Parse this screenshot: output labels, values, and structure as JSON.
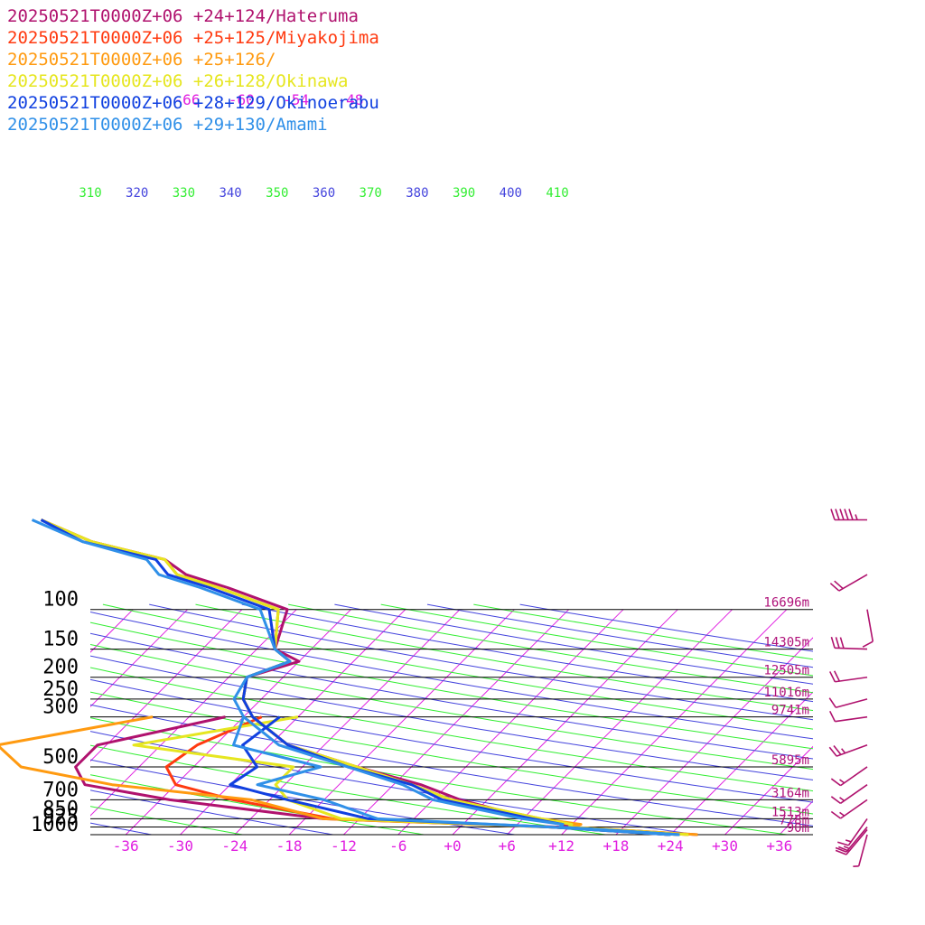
{
  "chart_data": {
    "type": "line",
    "pressure_levels": [
      100,
      150,
      200,
      250,
      300,
      500,
      700,
      850,
      925,
      1000
    ],
    "heights": [
      {
        "p": 100,
        "label": "16696m"
      },
      {
        "p": 150,
        "label": "14305m"
      },
      {
        "p": 200,
        "label": "12505m"
      },
      {
        "p": 250,
        "label": "11016m"
      },
      {
        "p": 300,
        "label": "9741m"
      },
      {
        "p": 500,
        "label": "5895m"
      },
      {
        "p": 700,
        "label": "3164m"
      },
      {
        "p": 850,
        "label": "1513m"
      },
      {
        "p": 925,
        "label": "778m"
      },
      {
        "p": 1000,
        "label": "90m"
      }
    ],
    "temperature_ticks": [
      "-36",
      "-30",
      "-24",
      "-18",
      "-12",
      "-6",
      "+0",
      "+6",
      "+12",
      "+18",
      "+24",
      "+30",
      "+36"
    ],
    "upper_isotherm_labels": [
      "-66",
      "-60",
      "-54",
      "-48"
    ],
    "theta_labels": [
      {
        "value": "310",
        "color": "#33ee33"
      },
      {
        "value": "320",
        "color": "#4444dd"
      },
      {
        "value": "330",
        "color": "#33ee33"
      },
      {
        "value": "340",
        "color": "#4444dd"
      },
      {
        "value": "350",
        "color": "#33ee33"
      },
      {
        "value": "360",
        "color": "#4444dd"
      },
      {
        "value": "370",
        "color": "#33ee33"
      },
      {
        "value": "380",
        "color": "#4444dd"
      },
      {
        "value": "390",
        "color": "#33ee33"
      },
      {
        "value": "400",
        "color": "#4444dd"
      },
      {
        "value": "410",
        "color": "#33ee33"
      }
    ],
    "series": [
      {
        "name": "20250521T0000Z+06 +24+124/Hateruma",
        "color": "#b0126e",
        "temperature": [
          [
            40,
            -80
          ],
          [
            50,
            -72
          ],
          [
            60,
            -62
          ],
          [
            70,
            -58
          ],
          [
            80,
            -52
          ],
          [
            100,
            -43
          ],
          [
            150,
            -40
          ],
          [
            170,
            -36
          ],
          [
            200,
            -40
          ],
          [
            250,
            -38
          ],
          [
            300,
            -35
          ],
          [
            400,
            -28
          ],
          [
            500,
            -18
          ],
          [
            600,
            -9
          ],
          [
            700,
            -3
          ],
          [
            850,
            7
          ],
          [
            900,
            11
          ],
          [
            925,
            12
          ],
          [
            1000,
            27
          ]
        ],
        "dewpoint": [
          [
            300,
            -38
          ],
          [
            400,
            -49
          ],
          [
            500,
            -49
          ],
          [
            600,
            -46
          ],
          [
            700,
            -35
          ],
          [
            850,
            -16
          ],
          [
            925,
            11
          ],
          [
            1000,
            24
          ]
        ]
      },
      {
        "name": "20250521T0000Z+06 +25+125/Miyakojima",
        "color": "#ff3a10",
        "temperature": [
          [
            40,
            -80
          ],
          [
            50,
            -72
          ],
          [
            60,
            -62
          ],
          [
            70,
            -59
          ],
          [
            80,
            -53
          ],
          [
            100,
            -44
          ],
          [
            150,
            -40
          ],
          [
            170,
            -37
          ],
          [
            200,
            -40
          ],
          [
            250,
            -38
          ],
          [
            300,
            -35
          ],
          [
            400,
            -28
          ],
          [
            500,
            -18
          ],
          [
            600,
            -10
          ],
          [
            700,
            -4
          ],
          [
            850,
            7
          ],
          [
            900,
            12
          ],
          [
            925,
            12
          ],
          [
            1000,
            26
          ]
        ],
        "dewpoint": [
          [
            300,
            -34
          ],
          [
            400,
            -38
          ],
          [
            500,
            -39
          ],
          [
            600,
            -36
          ],
          [
            700,
            -28
          ],
          [
            850,
            -15
          ],
          [
            925,
            10
          ],
          [
            1000,
            24
          ]
        ]
      },
      {
        "name": "20250521T0000Z+06 +25+126/",
        "color": "#ff9a10",
        "temperature": [
          [
            40,
            -80
          ],
          [
            50,
            -72
          ],
          [
            60,
            -62
          ],
          [
            70,
            -59
          ],
          [
            80,
            -53
          ],
          [
            100,
            -44
          ],
          [
            150,
            -40
          ],
          [
            170,
            -37
          ],
          [
            200,
            -40
          ],
          [
            250,
            -38
          ],
          [
            300,
            -35
          ],
          [
            400,
            -28
          ],
          [
            500,
            -18
          ],
          [
            600,
            -10
          ],
          [
            700,
            -4
          ],
          [
            850,
            8
          ],
          [
            900,
            13
          ],
          [
            925,
            12
          ],
          [
            1000,
            27
          ]
        ],
        "dewpoint": [
          [
            300,
            -46
          ],
          [
            400,
            -60
          ],
          [
            500,
            -55
          ],
          [
            600,
            -43
          ],
          [
            700,
            -26
          ],
          [
            850,
            -16
          ],
          [
            925,
            10
          ],
          [
            1000,
            25
          ]
        ]
      },
      {
        "name": "20250521T0000Z+06 +26+128/Okinawa",
        "color": "#e6e620",
        "temperature": [
          [
            40,
            -80
          ],
          [
            50,
            -72
          ],
          [
            60,
            -62
          ],
          [
            70,
            -59
          ],
          [
            80,
            -53
          ],
          [
            100,
            -44
          ],
          [
            150,
            -40
          ],
          [
            170,
            -37
          ],
          [
            200,
            -40
          ],
          [
            250,
            -38
          ],
          [
            300,
            -35
          ],
          [
            400,
            -28
          ],
          [
            500,
            -18
          ],
          [
            600,
            -10
          ],
          [
            700,
            -4
          ],
          [
            850,
            8
          ],
          [
            900,
            12
          ],
          [
            925,
            12
          ],
          [
            1000,
            26
          ]
        ],
        "dewpoint": [
          [
            300,
            -30
          ],
          [
            400,
            -45
          ],
          [
            500,
            -25
          ],
          [
            600,
            -25
          ],
          [
            700,
            -22
          ],
          [
            850,
            -14
          ],
          [
            925,
            10
          ],
          [
            1000,
            25
          ]
        ]
      },
      {
        "name": "20250521T0000Z+06 +28+129/Okinoerabu",
        "color": "#1040e0",
        "temperature": [
          [
            40,
            -80
          ],
          [
            50,
            -73
          ],
          [
            60,
            -63
          ],
          [
            70,
            -60
          ],
          [
            80,
            -54
          ],
          [
            100,
            -45
          ],
          [
            150,
            -40
          ],
          [
            170,
            -37
          ],
          [
            200,
            -40
          ],
          [
            250,
            -38
          ],
          [
            300,
            -35
          ],
          [
            400,
            -28
          ],
          [
            500,
            -19
          ],
          [
            600,
            -10
          ],
          [
            700,
            -5
          ],
          [
            850,
            7
          ],
          [
            900,
            11
          ],
          [
            925,
            11
          ],
          [
            1000,
            25
          ]
        ],
        "dewpoint": [
          [
            300,
            -32
          ],
          [
            400,
            -33
          ],
          [
            500,
            -29
          ],
          [
            600,
            -30
          ],
          [
            700,
            -22
          ],
          [
            850,
            -11
          ],
          [
            925,
            10
          ],
          [
            1000,
            24
          ]
        ]
      },
      {
        "name": "20250521T0000Z+06 +29+130/Amami",
        "color": "#3090e8",
        "temperature": [
          [
            40,
            -81
          ],
          [
            50,
            -73
          ],
          [
            60,
            -64
          ],
          [
            70,
            -61
          ],
          [
            80,
            -55
          ],
          [
            100,
            -46
          ],
          [
            150,
            -40
          ],
          [
            170,
            -37
          ],
          [
            200,
            -40
          ],
          [
            250,
            -39
          ],
          [
            300,
            -36
          ],
          [
            400,
            -29
          ],
          [
            500,
            -19
          ],
          [
            600,
            -11
          ],
          [
            700,
            -6
          ],
          [
            850,
            6
          ],
          [
            900,
            11
          ],
          [
            925,
            11
          ],
          [
            1000,
            25
          ]
        ],
        "dewpoint": [
          [
            300,
            -36
          ],
          [
            400,
            -34
          ],
          [
            500,
            -22
          ],
          [
            600,
            -27
          ],
          [
            700,
            -18
          ],
          [
            850,
            -10
          ],
          [
            925,
            10
          ],
          [
            1000,
            24
          ]
        ]
      }
    ],
    "wind_barbs": [
      {
        "p": 40,
        "speed": 55,
        "dir": 270
      },
      {
        "p": 70,
        "speed": 20,
        "dir": 240
      },
      {
        "p": 100,
        "speed": 10,
        "dir": 170
      },
      {
        "p": 150,
        "speed": 30,
        "dir": 272
      },
      {
        "p": 200,
        "speed": 20,
        "dir": 262
      },
      {
        "p": 250,
        "speed": 10,
        "dir": 255
      },
      {
        "p": 300,
        "speed": 10,
        "dir": 262
      },
      {
        "p": 400,
        "speed": 25,
        "dir": 250
      },
      {
        "p": 500,
        "speed": 15,
        "dir": 235
      },
      {
        "p": 600,
        "speed": 15,
        "dir": 235
      },
      {
        "p": 700,
        "speed": 15,
        "dir": 235
      },
      {
        "p": 850,
        "speed": 15,
        "dir": 215
      },
      {
        "p": 925,
        "speed": 15,
        "dir": 220
      },
      {
        "p": 950,
        "speed": 20,
        "dir": 220
      },
      {
        "p": 1000,
        "speed": 5,
        "dir": 195
      }
    ]
  }
}
